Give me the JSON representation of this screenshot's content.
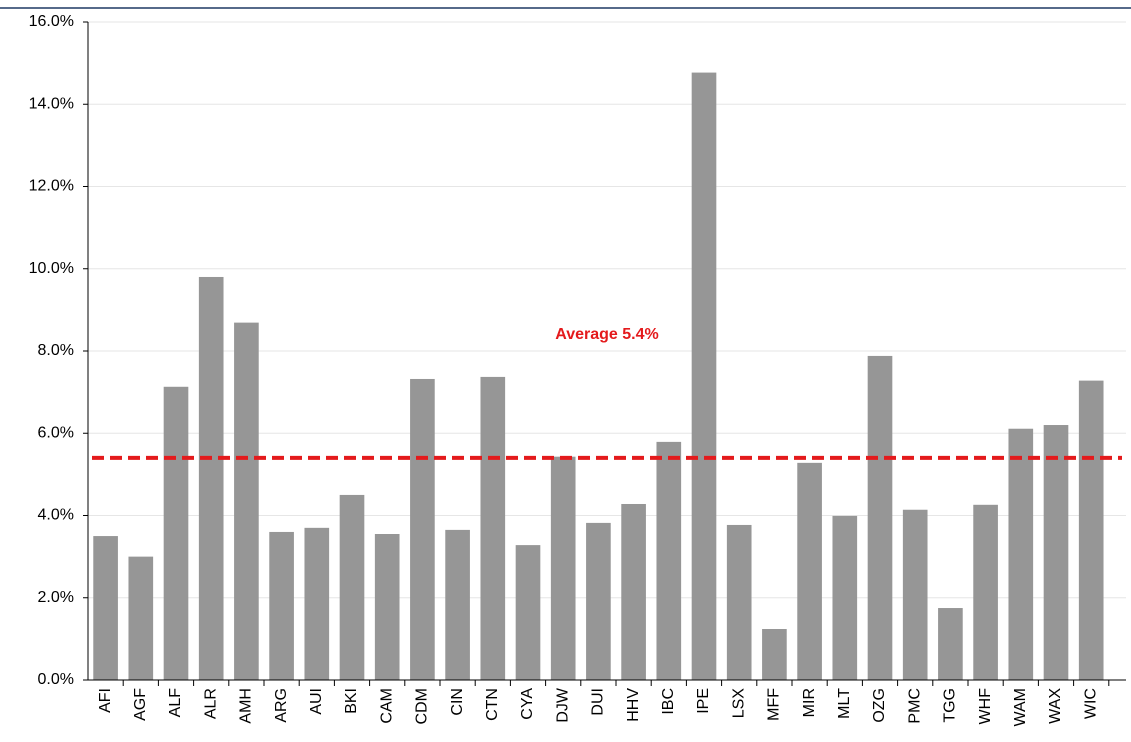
{
  "chart_data": {
    "type": "bar",
    "categories": [
      "AFI",
      "AGF",
      "ALF",
      "ALR",
      "AMH",
      "ARG",
      "AUI",
      "BKI",
      "CAM",
      "CDM",
      "CIN",
      "CTN",
      "CYA",
      "DJW",
      "DUI",
      "HHV",
      "IBC",
      "IPE",
      "LSX",
      "MFF",
      "MIR",
      "MLT",
      "OZG",
      "PMC",
      "TGG",
      "WHF",
      "WAM",
      "WAX",
      "WIC"
    ],
    "values": [
      3.5,
      3.0,
      7.13,
      9.8,
      8.69,
      3.6,
      3.7,
      4.5,
      3.55,
      7.32,
      3.65,
      7.37,
      3.28,
      5.43,
      3.82,
      4.28,
      5.79,
      14.77,
      3.77,
      1.24,
      5.28,
      3.99,
      7.88,
      4.14,
      1.75,
      4.26,
      6.11,
      6.2,
      7.28
    ],
    "color": "#969696",
    "ylim": [
      0,
      16
    ],
    "yticks": [
      {
        "value": 0,
        "label": "0.0%"
      },
      {
        "value": 2,
        "label": "2.0%"
      },
      {
        "value": 4,
        "label": "4.0%"
      },
      {
        "value": 6,
        "label": "6.0%"
      },
      {
        "value": 8,
        "label": "8.0%"
      },
      {
        "value": 10,
        "label": "10.0%"
      },
      {
        "value": 12,
        "label": "12.0%"
      },
      {
        "value": 14,
        "label": "14.0%"
      },
      {
        "value": 16,
        "label": "16.0%"
      }
    ],
    "grid": true,
    "average": 5.4,
    "average_color": "#e41a1c",
    "annotation": "Average 5.4%"
  }
}
